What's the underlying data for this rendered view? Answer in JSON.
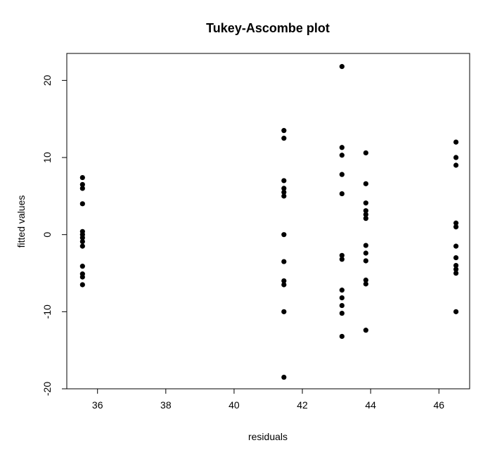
{
  "chart_data": {
    "type": "scatter",
    "title": "Tukey-Ascombe plot",
    "xlabel": "residuals",
    "ylabel": "fitted values",
    "xlim": [
      35.1,
      46.9
    ],
    "ylim": [
      -20,
      23.5
    ],
    "xticks": [
      36,
      38,
      40,
      42,
      44,
      46
    ],
    "yticks": [
      -20,
      -10,
      0,
      10,
      20
    ],
    "grid": false,
    "points": [
      {
        "x": 35.56,
        "y": 7.4
      },
      {
        "x": 35.56,
        "y": 6.5
      },
      {
        "x": 35.56,
        "y": 6.0
      },
      {
        "x": 35.56,
        "y": 4.0
      },
      {
        "x": 35.56,
        "y": 0.4
      },
      {
        "x": 35.56,
        "y": 0.0
      },
      {
        "x": 35.56,
        "y": -0.4
      },
      {
        "x": 35.56,
        "y": -0.9
      },
      {
        "x": 35.56,
        "y": -1.5
      },
      {
        "x": 35.56,
        "y": -4.1
      },
      {
        "x": 35.56,
        "y": -5.1
      },
      {
        "x": 35.56,
        "y": -5.5
      },
      {
        "x": 35.56,
        "y": -6.5
      },
      {
        "x": 41.46,
        "y": 13.5
      },
      {
        "x": 41.46,
        "y": 12.5
      },
      {
        "x": 41.46,
        "y": 7.0
      },
      {
        "x": 41.46,
        "y": 6.0
      },
      {
        "x": 41.46,
        "y": 5.5
      },
      {
        "x": 41.46,
        "y": 5.0
      },
      {
        "x": 41.46,
        "y": 0.0
      },
      {
        "x": 41.46,
        "y": -3.5
      },
      {
        "x": 41.46,
        "y": -6.0
      },
      {
        "x": 41.46,
        "y": -6.5
      },
      {
        "x": 41.46,
        "y": -10.0
      },
      {
        "x": 41.46,
        "y": -18.5
      },
      {
        "x": 43.16,
        "y": 21.8
      },
      {
        "x": 43.16,
        "y": 11.3
      },
      {
        "x": 43.16,
        "y": 10.3
      },
      {
        "x": 43.16,
        "y": 7.8
      },
      {
        "x": 43.16,
        "y": 5.3
      },
      {
        "x": 43.16,
        "y": -2.7
      },
      {
        "x": 43.16,
        "y": -3.2
      },
      {
        "x": 43.16,
        "y": -7.2
      },
      {
        "x": 43.16,
        "y": -8.2
      },
      {
        "x": 43.16,
        "y": -9.2
      },
      {
        "x": 43.16,
        "y": -10.2
      },
      {
        "x": 43.16,
        "y": -13.2
      },
      {
        "x": 43.86,
        "y": 10.6
      },
      {
        "x": 43.86,
        "y": 6.6
      },
      {
        "x": 43.86,
        "y": 4.1
      },
      {
        "x": 43.86,
        "y": 3.1
      },
      {
        "x": 43.86,
        "y": 2.6
      },
      {
        "x": 43.86,
        "y": 2.1
      },
      {
        "x": 43.86,
        "y": -1.4
      },
      {
        "x": 43.86,
        "y": -2.4
      },
      {
        "x": 43.86,
        "y": -3.4
      },
      {
        "x": 43.86,
        "y": -5.9
      },
      {
        "x": 43.86,
        "y": -6.4
      },
      {
        "x": 43.86,
        "y": -12.4
      },
      {
        "x": 46.5,
        "y": 12.0
      },
      {
        "x": 46.5,
        "y": 10.0
      },
      {
        "x": 46.5,
        "y": 9.0
      },
      {
        "x": 46.5,
        "y": 1.5
      },
      {
        "x": 46.5,
        "y": 1.0
      },
      {
        "x": 46.5,
        "y": -1.5
      },
      {
        "x": 46.5,
        "y": -3.0
      },
      {
        "x": 46.5,
        "y": -4.0
      },
      {
        "x": 46.5,
        "y": -4.5
      },
      {
        "x": 46.5,
        "y": -5.0
      },
      {
        "x": 46.5,
        "y": -10.0
      }
    ]
  }
}
